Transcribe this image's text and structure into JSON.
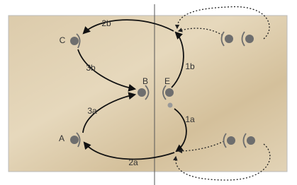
{
  "players": [
    {
      "label": "C"
    },
    {
      "label": "B"
    },
    {
      "label": "E"
    },
    {
      "label": "A"
    }
  ],
  "passes": [
    {
      "label": "1a"
    },
    {
      "label": "1b"
    },
    {
      "label": "2a"
    },
    {
      "label": "2b"
    },
    {
      "label": "3a"
    },
    {
      "label": "3b"
    }
  ]
}
